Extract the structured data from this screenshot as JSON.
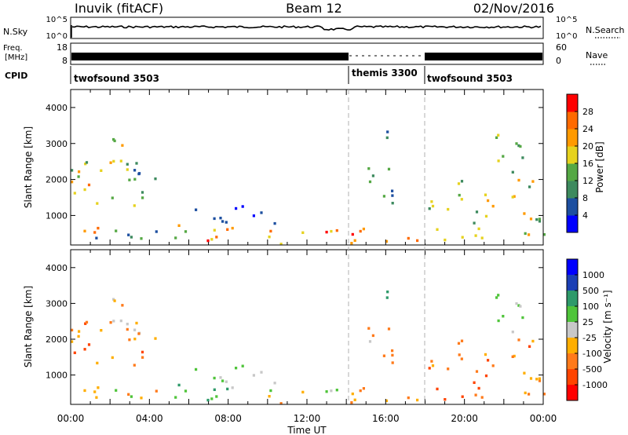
{
  "header": {
    "station": "Inuvik (fitACF)",
    "beam": "Beam 12",
    "date": "02/Nov/2016"
  },
  "top_panels": {
    "nsky_label": "N.Sky",
    "nsky_ticks": [
      "10^5",
      "10^0"
    ],
    "nsearch_label": "N.Search",
    "nsearch_ticks": [
      "10^5",
      "10^0"
    ],
    "freq_label_line1": "Freq.",
    "freq_label_line2": "[MHz]",
    "freq_ticks": [
      "18",
      "8"
    ],
    "nave_label": "Nave",
    "nave_ticks": [
      "60",
      "0"
    ],
    "cpid_label": "CPID",
    "cpid_segments": [
      {
        "label": "twofsound 3503",
        "start_hour": 0
      },
      {
        "label": "themis 3300",
        "start_hour": 14
      },
      {
        "label": "twofsound 3503",
        "start_hour": 18
      }
    ]
  },
  "colors": {
    "power_scale": [
      "#0000ff",
      "#1d4fa0",
      "#3d8a5e",
      "#55a844",
      "#e6d21e",
      "#ff9a00",
      "#ff6a00",
      "#ff0000"
    ],
    "velocity_scale": [
      "#ff0000",
      "#ff4400",
      "#ff7a1a",
      "#ffae00",
      "#c8c8c8",
      "#4fc43a",
      "#2e9a6a",
      "#1b3fb5",
      "#0000ff"
    ]
  },
  "chart_data": [
    {
      "type": "heatmap",
      "title": "Power",
      "xlabel": "",
      "ylabel": "Slant Range [km]",
      "xlim": [
        0,
        24
      ],
      "ylim": [
        180,
        4500
      ],
      "yticks": [
        "1000",
        "2000",
        "3000",
        "4000"
      ],
      "xticks": [
        0,
        4,
        8,
        12,
        16,
        20,
        24
      ],
      "colorbar_label": "Power [dB]",
      "colorbar_ticks": [
        "4",
        "8",
        "12",
        "16",
        "20",
        "24",
        "28"
      ],
      "grid": false
    },
    {
      "type": "heatmap",
      "title": "Velocity",
      "xlabel": "Time UT",
      "ylabel": "Slant Range [km]",
      "xlim": [
        0,
        24
      ],
      "ylim": [
        180,
        4500
      ],
      "yticks": [
        "1000",
        "2000",
        "3000",
        "4000"
      ],
      "xticks": [
        0,
        4,
        8,
        12,
        16,
        20,
        24
      ],
      "xtick_labels": [
        "00:00",
        "04:00",
        "08:00",
        "12:00",
        "16:00",
        "20:00",
        "00:00"
      ],
      "colorbar_label": "Velocity [m s⁻¹]",
      "colorbar_ticks": [
        "1000",
        "500",
        "100",
        "25",
        "-25",
        "-100",
        "-500",
        "-1000"
      ],
      "grid": false
    }
  ]
}
